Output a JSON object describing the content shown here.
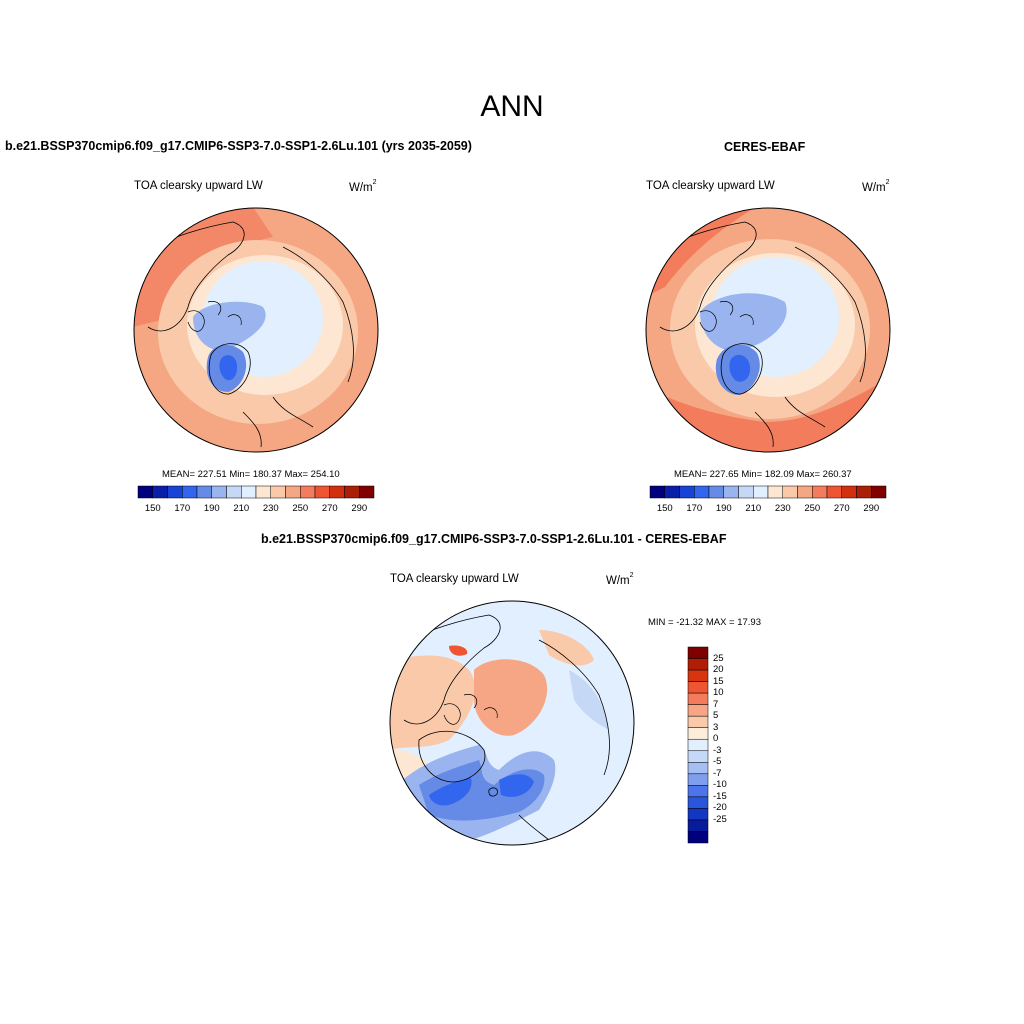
{
  "main_title": "ANN",
  "panels": [
    {
      "title": "b.e21.BSSP370cmip6.f09_g17.CMIP6-SSP3-7.0-SSP1-2.6Lu.101 (yrs 2035-2059)",
      "variable": "TOA clearsky upward LW",
      "units": "W/m",
      "units_exp": "2",
      "stats_text": "MEAN= 227.51  Min= 180.37  Max= 254.10",
      "mean": 227.51,
      "min": 180.37,
      "max": 254.1
    },
    {
      "title": "CERES-EBAF",
      "variable": "TOA clearsky upward LW",
      "units": "W/m",
      "units_exp": "2",
      "stats_text": "MEAN= 227.65  Min= 182.09  Max= 260.37",
      "mean": 227.65,
      "min": 182.09,
      "max": 260.37
    },
    {
      "title": "b.e21.BSSP370cmip6.f09_g17.CMIP6-SSP3-7.0-SSP1-2.6Lu.101 - CERES-EBAF",
      "variable": "TOA clearsky upward LW",
      "units": "W/m",
      "units_exp": "2",
      "stats_text": "MIN = -21.32 MAX =  17.93",
      "min": -21.32,
      "max": 17.93
    }
  ],
  "colorbar_abs": {
    "colors": [
      "#00007f",
      "#0a1fa8",
      "#1744d6",
      "#3366ee",
      "#668be6",
      "#99b4ee",
      "#c5d8f5",
      "#e2efff",
      "#fde7d3",
      "#f9c9aa",
      "#f5a683",
      "#f27c5c",
      "#ee5533",
      "#d22f0e",
      "#ac1f07",
      "#800000"
    ],
    "tick_labels": [
      "150",
      "170",
      "190",
      "210",
      "230",
      "250",
      "270",
      "290"
    ]
  },
  "colorbar_diff": {
    "colors": [
      "#800000",
      "#b01e06",
      "#d63510",
      "#ee5533",
      "#f27c5c",
      "#f6a585",
      "#f9c9aa",
      "#fdeedc",
      "#e2efff",
      "#c5d8f5",
      "#a5bff2",
      "#7f9fee",
      "#4d74e8",
      "#2a56de",
      "#1337c2",
      "#081b9a",
      "#00007f"
    ],
    "tick_labels": [
      "25",
      "20",
      "15",
      "10",
      "7",
      "5",
      "3",
      "0",
      "-3",
      "-5",
      "-7",
      "-10",
      "-15",
      "-20",
      "-25"
    ]
  },
  "map_colors": {
    "ocean_pale": "#e2efff",
    "cream": "#fde7d3",
    "salmon": "#f9c9aa",
    "orange": "#f5a683",
    "red_orange": "#f27c5c",
    "blue_light": "#99b4ee",
    "blue_mid": "#668be6",
    "blue_dark": "#3366ee",
    "coast": "#000000"
  }
}
